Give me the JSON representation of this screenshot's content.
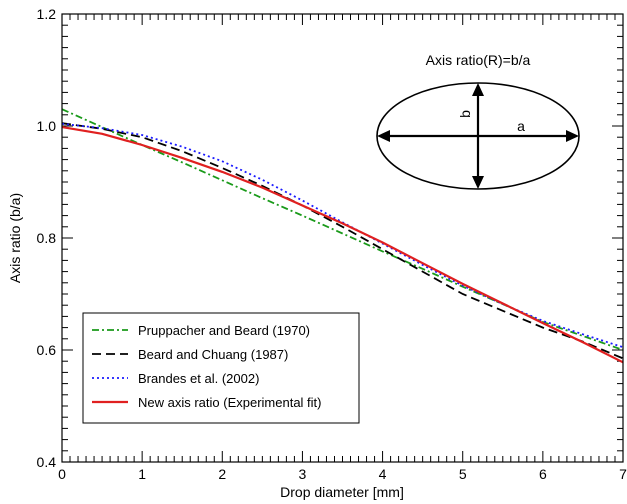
{
  "chart_data": {
    "type": "line",
    "title": "",
    "xlabel": "Drop diameter [mm]",
    "ylabel": "Axis ratio (b/a)",
    "xlim": [
      0,
      7
    ],
    "ylim": [
      0.4,
      1.2
    ],
    "xticks": [
      0,
      1,
      2,
      3,
      4,
      5,
      6,
      7
    ],
    "yticks": [
      0.4,
      0.6,
      0.8,
      1.0,
      1.2
    ],
    "xtick_labels": [
      "0",
      "1",
      "2",
      "3",
      "4",
      "5",
      "6",
      "7"
    ],
    "ytick_labels": [
      "0.4",
      "0.6",
      "0.8",
      "1.0",
      "1.2"
    ],
    "grid": false,
    "legend_position": "bottom-left",
    "series": [
      {
        "name": "Pruppacher and Beard (1970)",
        "color": "#1a9a1a",
        "dash": "dash-dot",
        "x": [
          0,
          0.5,
          1,
          1.5,
          2,
          2.5,
          3,
          3.5,
          4,
          4.5,
          5,
          5.5,
          6,
          6.5,
          7
        ],
        "y": [
          1.03,
          0.998,
          0.966,
          0.935,
          0.903,
          0.871,
          0.84,
          0.808,
          0.776,
          0.745,
          0.713,
          0.682,
          0.65,
          0.625,
          0.6
        ]
      },
      {
        "name": "Beard and Chuang (1987)",
        "color": "#000000",
        "dash": "dashed",
        "x": [
          0,
          0.5,
          1,
          1.5,
          2,
          2.5,
          3,
          3.5,
          4,
          4.5,
          5,
          5.5,
          6,
          6.5,
          7
        ],
        "y": [
          1.005,
          0.995,
          0.98,
          0.955,
          0.925,
          0.893,
          0.858,
          0.82,
          0.78,
          0.74,
          0.7,
          0.67,
          0.64,
          0.615,
          0.585
        ]
      },
      {
        "name": "Brandes et al. (2002)",
        "color": "#1a1aff",
        "dash": "dotted",
        "x": [
          0,
          0.5,
          1,
          1.5,
          2,
          2.5,
          3,
          3.5,
          4,
          4.5,
          5,
          5.5,
          6,
          6.5,
          7
        ],
        "y": [
          1.004,
          0.996,
          0.984,
          0.963,
          0.937,
          0.904,
          0.867,
          0.828,
          0.79,
          0.752,
          0.715,
          0.682,
          0.652,
          0.628,
          0.605
        ]
      },
      {
        "name": "New axis ratio (Experimental fit)",
        "color": "#e02020",
        "dash": "solid",
        "x": [
          0,
          0.5,
          1,
          1.5,
          2,
          2.5,
          3,
          3.5,
          4,
          4.5,
          5,
          5.5,
          6,
          6.5,
          7
        ],
        "y": [
          0.998,
          0.986,
          0.966,
          0.943,
          0.918,
          0.89,
          0.858,
          0.826,
          0.792,
          0.755,
          0.718,
          0.683,
          0.648,
          0.614,
          0.578
        ]
      }
    ]
  },
  "inset": {
    "title": "Axis ratio(R)=b/a",
    "label_b": "b",
    "label_a": "a"
  }
}
